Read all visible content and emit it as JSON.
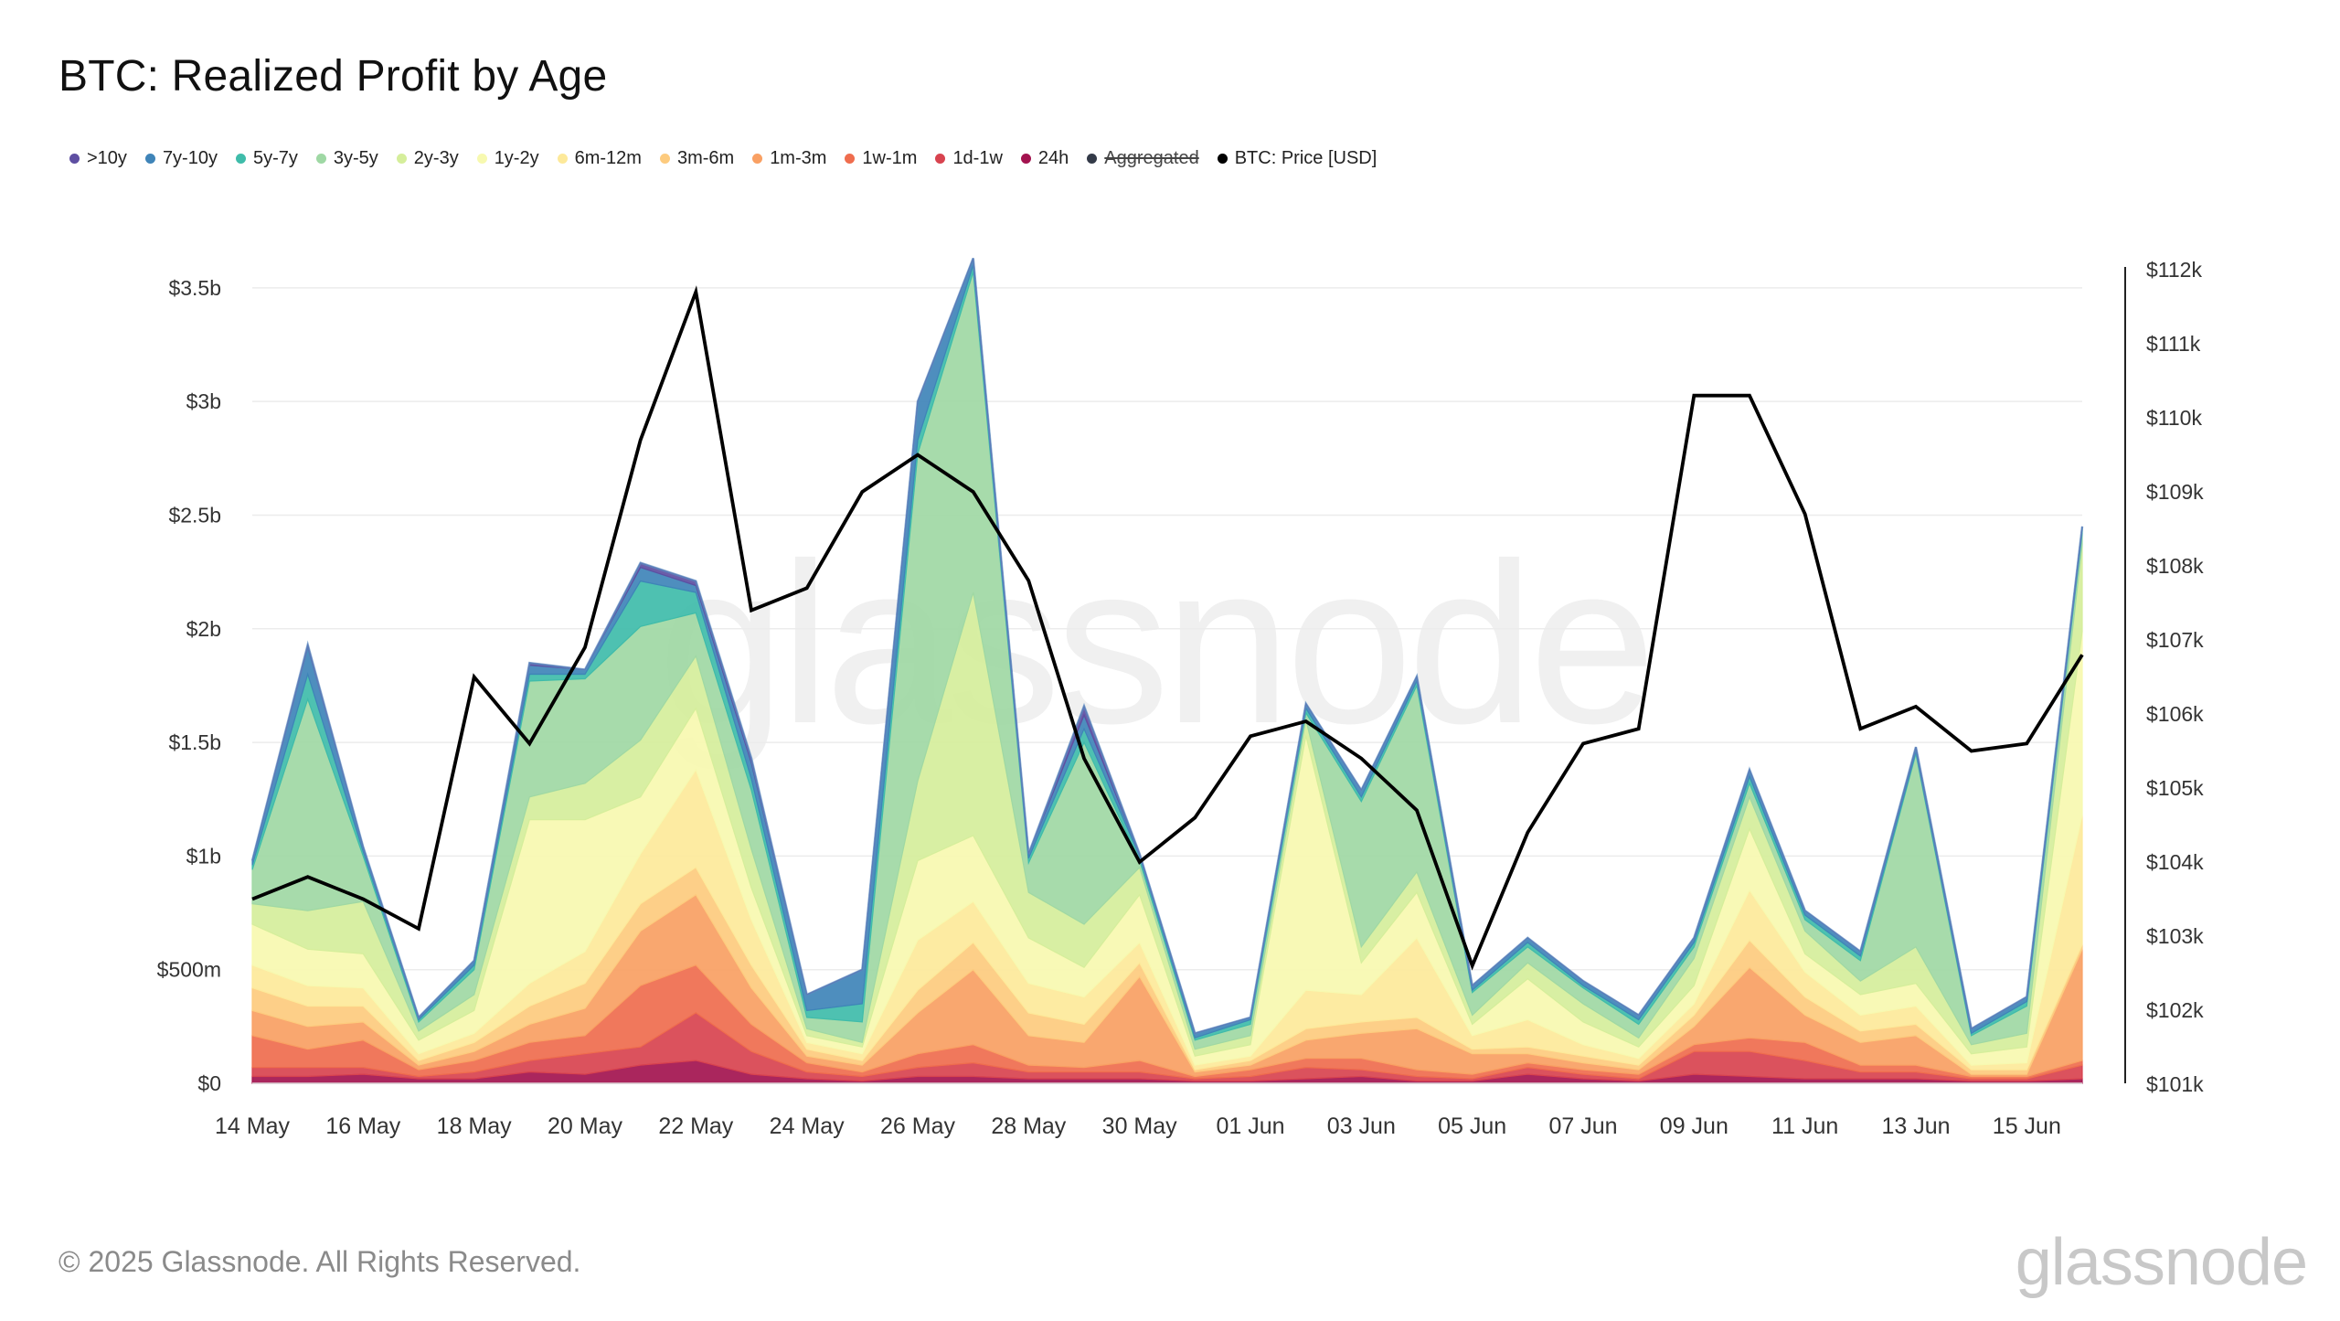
{
  "title": "BTC: Realized Profit by Age",
  "footer": "© 2025 Glassnode. All Rights Reserved.",
  "brand": "glassnode",
  "watermark": "glassnode",
  "legend": [
    {
      "label": ">10y",
      "color": "#5e4fa2",
      "disabled": false
    },
    {
      "label": "7y-10y",
      "color": "#3f84b8",
      "disabled": false
    },
    {
      "label": "5y-7y",
      "color": "#3fbcaa",
      "disabled": false
    },
    {
      "label": "3y-5y",
      "color": "#9fd8a4",
      "disabled": false
    },
    {
      "label": "2y-3y",
      "color": "#d5ee9b",
      "disabled": false
    },
    {
      "label": "1y-2y",
      "color": "#f7f9b0",
      "disabled": false
    },
    {
      "label": "6m-12m",
      "color": "#fde99a",
      "disabled": false
    },
    {
      "label": "3m-6m",
      "color": "#fdcb7e",
      "disabled": false
    },
    {
      "label": "1m-3m",
      "color": "#f9a063",
      "disabled": false
    },
    {
      "label": "1w-1m",
      "color": "#ef6d4e",
      "disabled": false
    },
    {
      "label": "1d-1w",
      "color": "#d8434f",
      "disabled": false
    },
    {
      "label": "24h",
      "color": "#a3134f",
      "disabled": false
    },
    {
      "label": "Aggregated",
      "color": "#333a48",
      "disabled": true
    },
    {
      "label": "BTC: Price [USD]",
      "color": "#000000",
      "disabled": false
    }
  ],
  "chart_data": {
    "type": "area",
    "stacked": true,
    "x": [
      "14 May",
      "15 May",
      "16 May",
      "17 May",
      "18 May",
      "19 May",
      "20 May",
      "21 May",
      "22 May",
      "23 May",
      "24 May",
      "25 May",
      "26 May",
      "27 May",
      "28 May",
      "29 May",
      "30 May",
      "31 May",
      "01 Jun",
      "02 Jun",
      "03 Jun",
      "04 Jun",
      "05 Jun",
      "06 Jun",
      "07 Jun",
      "08 Jun",
      "09 Jun",
      "10 Jun",
      "11 Jun",
      "12 Jun",
      "13 Jun",
      "14 Jun",
      "15 Jun",
      "16 Jun"
    ],
    "x_tick_labels": [
      "14 May",
      "16 May",
      "18 May",
      "20 May",
      "22 May",
      "24 May",
      "26 May",
      "28 May",
      "30 May",
      "01 Jun",
      "03 Jun",
      "05 Jun",
      "07 Jun",
      "09 Jun",
      "11 Jun",
      "13 Jun",
      "15 Jun"
    ],
    "y_left": {
      "ticks": [
        "$0",
        "$500m",
        "$1b",
        "$1.5b",
        "$2b",
        "$2.5b",
        "$3b",
        "$3.5b"
      ],
      "range": [
        0,
        3.6
      ],
      "unit": "b USD"
    },
    "y_right": {
      "ticks": [
        "$101k",
        "$102k",
        "$103k",
        "$104k",
        "$105k",
        "$106k",
        "$107k",
        "$108k",
        "$109k",
        "$110k",
        "$111k",
        "$112k"
      ],
      "range": [
        101000,
        112000
      ]
    },
    "grid": true,
    "legend_position": "top-left",
    "series": [
      {
        "name": "24h",
        "values": [
          0.03,
          0.03,
          0.04,
          0.02,
          0.02,
          0.05,
          0.04,
          0.08,
          0.1,
          0.04,
          0.02,
          0.01,
          0.03,
          0.03,
          0.02,
          0.02,
          0.02,
          0.01,
          0.01,
          0.02,
          0.03,
          0.01,
          0.01,
          0.04,
          0.02,
          0.01,
          0.04,
          0.03,
          0.02,
          0.02,
          0.02,
          0.01,
          0.01,
          0.02
        ]
      },
      {
        "name": "1d-1w",
        "values": [
          0.04,
          0.04,
          0.03,
          0.01,
          0.03,
          0.05,
          0.09,
          0.08,
          0.21,
          0.1,
          0.03,
          0.02,
          0.04,
          0.06,
          0.03,
          0.03,
          0.03,
          0.01,
          0.02,
          0.05,
          0.03,
          0.02,
          0.01,
          0.03,
          0.02,
          0.01,
          0.1,
          0.11,
          0.08,
          0.03,
          0.03,
          0.01,
          0.01,
          0.06
        ]
      },
      {
        "name": "1w-1m",
        "values": [
          0.14,
          0.08,
          0.12,
          0.03,
          0.05,
          0.08,
          0.08,
          0.27,
          0.21,
          0.12,
          0.04,
          0.02,
          0.06,
          0.08,
          0.03,
          0.02,
          0.05,
          0.01,
          0.03,
          0.04,
          0.05,
          0.03,
          0.02,
          0.02,
          0.02,
          0.02,
          0.03,
          0.06,
          0.08,
          0.03,
          0.03,
          0.01,
          0.01,
          0.02
        ]
      },
      {
        "name": "1m-3m",
        "values": [
          0.11,
          0.1,
          0.08,
          0.02,
          0.04,
          0.08,
          0.12,
          0.24,
          0.31,
          0.16,
          0.03,
          0.03,
          0.18,
          0.33,
          0.13,
          0.11,
          0.37,
          0.02,
          0.02,
          0.08,
          0.11,
          0.18,
          0.09,
          0.04,
          0.03,
          0.02,
          0.08,
          0.31,
          0.12,
          0.1,
          0.13,
          0.01,
          0.01,
          0.49
        ]
      },
      {
        "name": "3m-6m",
        "values": [
          0.1,
          0.09,
          0.07,
          0.02,
          0.04,
          0.08,
          0.11,
          0.12,
          0.12,
          0.1,
          0.03,
          0.02,
          0.1,
          0.12,
          0.1,
          0.08,
          0.06,
          0.01,
          0.02,
          0.05,
          0.05,
          0.05,
          0.02,
          0.03,
          0.03,
          0.02,
          0.05,
          0.12,
          0.08,
          0.05,
          0.05,
          0.02,
          0.02,
          0.02
        ]
      },
      {
        "name": "6m-12m",
        "values": [
          0.1,
          0.09,
          0.08,
          0.03,
          0.04,
          0.1,
          0.14,
          0.22,
          0.43,
          0.2,
          0.03,
          0.03,
          0.22,
          0.18,
          0.13,
          0.12,
          0.09,
          0.02,
          0.02,
          0.17,
          0.12,
          0.35,
          0.06,
          0.12,
          0.05,
          0.03,
          0.05,
          0.22,
          0.11,
          0.07,
          0.08,
          0.02,
          0.03,
          0.57
        ]
      },
      {
        "name": "1y-2y",
        "values": [
          0.18,
          0.16,
          0.15,
          0.06,
          0.1,
          0.72,
          0.58,
          0.25,
          0.27,
          0.14,
          0.03,
          0.03,
          0.35,
          0.29,
          0.2,
          0.13,
          0.21,
          0.04,
          0.05,
          1.12,
          0.14,
          0.2,
          0.05,
          0.18,
          0.1,
          0.05,
          0.08,
          0.27,
          0.08,
          0.09,
          0.1,
          0.05,
          0.07,
          0.81
        ]
      },
      {
        "name": "2y-3y",
        "values": [
          0.09,
          0.17,
          0.23,
          0.04,
          0.07,
          0.1,
          0.16,
          0.25,
          0.23,
          0.17,
          0.03,
          0.02,
          0.35,
          1.07,
          0.2,
          0.19,
          0.12,
          0.03,
          0.04,
          0.07,
          0.07,
          0.09,
          0.04,
          0.07,
          0.08,
          0.04,
          0.12,
          0.14,
          0.1,
          0.06,
          0.16,
          0.04,
          0.06,
          0.38
        ]
      },
      {
        "name": "3y-5y",
        "values": [
          0.15,
          0.93,
          0.2,
          0.04,
          0.11,
          0.51,
          0.46,
          0.5,
          0.19,
          0.26,
          0.05,
          0.09,
          1.44,
          1.41,
          0.13,
          0.8,
          0.03,
          0.04,
          0.05,
          0.03,
          0.64,
          0.82,
          0.1,
          0.07,
          0.07,
          0.06,
          0.05,
          0.06,
          0.05,
          0.09,
          0.85,
          0.04,
          0.12,
          0.05
        ]
      },
      {
        "name": "5y-7y",
        "values": [
          0.02,
          0.11,
          0.02,
          0.01,
          0.02,
          0.03,
          0.02,
          0.2,
          0.09,
          0.05,
          0.03,
          0.08,
          0.06,
          0.03,
          0.02,
          0.06,
          0.02,
          0.01,
          0.02,
          0.02,
          0.02,
          0.02,
          0.01,
          0.02,
          0.01,
          0.02,
          0.02,
          0.03,
          0.02,
          0.02,
          0.01,
          0.01,
          0.02,
          0.02
        ]
      },
      {
        "name": "7y-10y",
        "values": [
          0.02,
          0.12,
          0.02,
          0.01,
          0.02,
          0.04,
          0.02,
          0.06,
          0.03,
          0.07,
          0.07,
          0.15,
          0.17,
          0.03,
          0.02,
          0.06,
          0.01,
          0.02,
          0.01,
          0.02,
          0.03,
          0.02,
          0.02,
          0.02,
          0.02,
          0.02,
          0.02,
          0.03,
          0.02,
          0.02,
          0.02,
          0.02,
          0.02,
          0.01
        ]
      },
      {
        "name": ">10y",
        "values": [
          0.0,
          0.01,
          0.0,
          0.0,
          0.0,
          0.01,
          0.0,
          0.02,
          0.02,
          0.02,
          0.0,
          0.0,
          0.0,
          0.0,
          0.0,
          0.04,
          0.0,
          0.0,
          0.0,
          0.0,
          0.0,
          0.0,
          0.0,
          0.0,
          0.0,
          0.0,
          0.0,
          0.0,
          0.0,
          0.0,
          0.0,
          0.0,
          0.0,
          0.0
        ]
      }
    ],
    "price_series": {
      "name": "BTC: Price [USD]",
      "values": [
        103500,
        103800,
        103500,
        103100,
        106500,
        105600,
        106900,
        109700,
        111700,
        107400,
        107700,
        109000,
        109500,
        109000,
        107800,
        105400,
        104000,
        104600,
        105700,
        105900,
        105400,
        104700,
        102600,
        104400,
        105600,
        105800,
        110300,
        110300,
        108700,
        105800,
        106100,
        105500,
        105600,
        106800
      ]
    }
  }
}
